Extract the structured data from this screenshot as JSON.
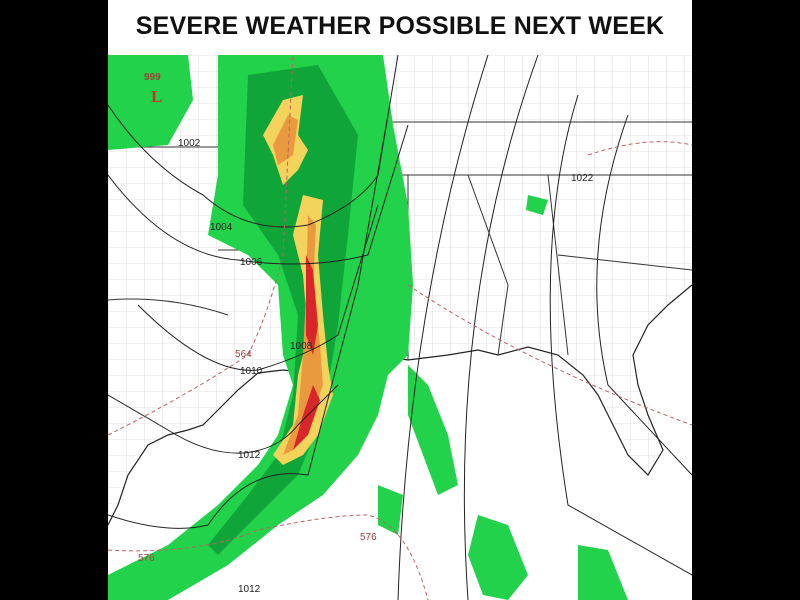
{
  "title": "SEVERE WEATHER POSSIBLE NEXT WEEK",
  "low_center": {
    "pressure": "999",
    "symbol": "L",
    "color": "#c0392b"
  },
  "isobar_labels": [
    "1002",
    "1004",
    "1006",
    "1008",
    "1010",
    "1012",
    "1012",
    "1022"
  ],
  "height_labels": [
    "564",
    "576",
    "576"
  ],
  "colors": {
    "light_green": "#22d24a",
    "dark_green": "#0d9a34",
    "yellow": "#f3d35b",
    "orange": "#e99a3f",
    "red": "#d9262a",
    "isobar": "#222222",
    "height_contour": "#c06060"
  }
}
